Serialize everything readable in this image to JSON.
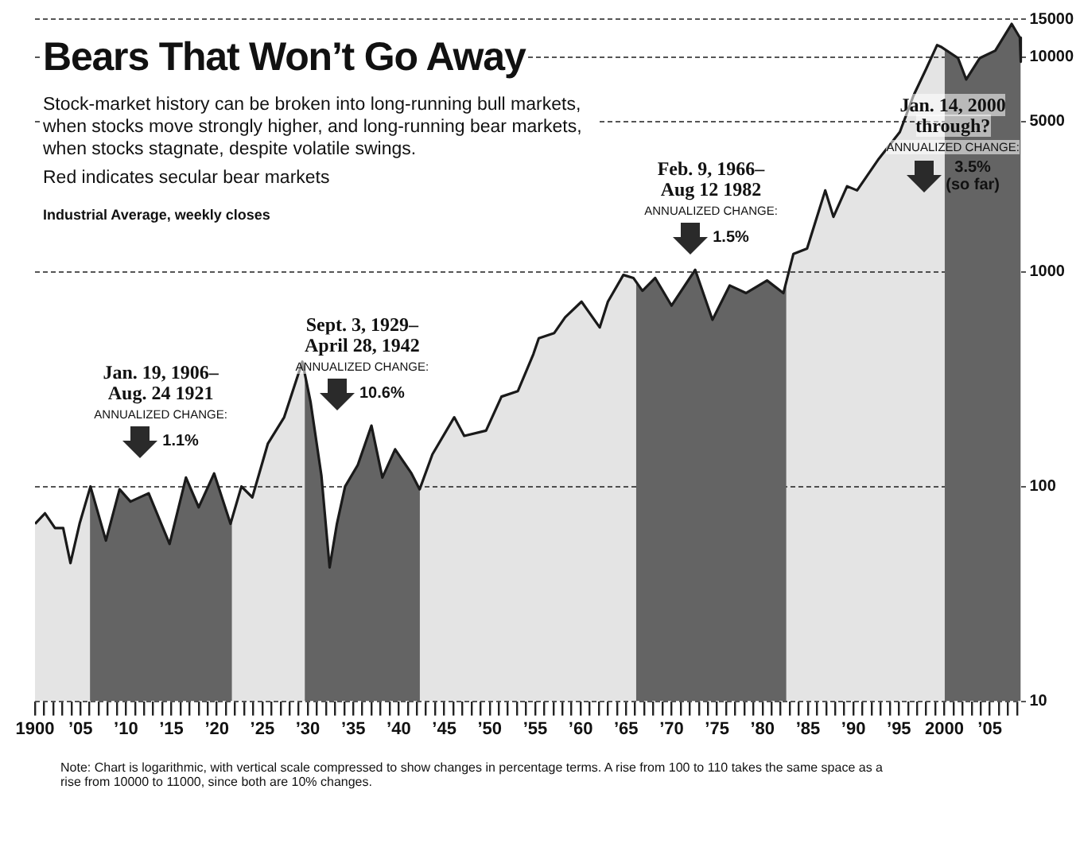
{
  "chart_data": {
    "type": "area",
    "title": "Bears That Won’t Go Away",
    "subtitle": "Stock-market history can be broken into long-running bull markets, when stocks move strongly higher, and long-running bear markets, when stocks stagnate, despite volatile swings.",
    "annotations": [
      "Red indicates secular bear markets",
      "Industrial Average, weekly closes",
      "Note: Chart is logarithmic, with vertical scale compressed to show changes in percentage terms. A rise from 100 to 110 takes the same space as a rise from 10000 to 11000, since both are 10% changes."
    ],
    "series": [
      {
        "color": "#1a1a1a",
        "x": [
          1900,
          1901.1,
          1902.2,
          1903.1,
          1903.9,
          1904.9,
          1906.1,
          1907.8,
          1909.3,
          1910.5,
          1912.5,
          1914.8,
          1916.6,
          1918.0,
          1919.7,
          1921.5,
          1922.7,
          1923.9,
          1925.6,
          1927.4,
          1929.4,
          1930.3,
          1931.5,
          1932.4,
          1933.2,
          1934.1,
          1935.5,
          1937.0,
          1938.2,
          1939.6,
          1941.4,
          1942.3,
          1943.7,
          1946.1,
          1947.2,
          1949.6,
          1951.3,
          1953.1,
          1954.8,
          1955.4,
          1957.1,
          1958.3,
          1960.1,
          1962.1,
          1963.0,
          1964.7,
          1965.8,
          1966.8,
          1968.2,
          1970.0,
          1972.6,
          1974.5,
          1976.4,
          1978.2,
          1980.5,
          1982.3,
          1983.4,
          1984.9,
          1986.9,
          1987.8,
          1989.3,
          1990.4,
          1992.8,
          1995.1,
          1996.6,
          1998.0,
          1999.2,
          1999.7,
          2001.5,
          2002.4,
          2003.9,
          2005.6,
          2007.4,
          2008.3,
          2008.4
        ],
        "values": [
          67,
          75,
          64,
          64,
          44,
          67,
          100,
          56,
          97,
          85,
          93,
          54,
          110,
          80,
          115,
          67,
          100,
          89,
          158,
          210,
          381,
          248,
          112,
          42,
          67,
          100,
          126,
          192,
          110,
          149,
          115,
          97,
          141,
          210,
          172,
          182,
          262,
          278,
          413,
          490,
          518,
          613,
          725,
          550,
          725,
          966,
          935,
          815,
          935,
          695,
          1020,
          597,
          863,
          795,
          910,
          795,
          1210,
          1282,
          2390,
          1800,
          2500,
          2390,
          3360,
          4470,
          6600,
          8800,
          11350,
          11100,
          9880,
          7850,
          9880,
          10700,
          14250,
          12300,
          9500
        ]
      }
    ],
    "bands": [
      {
        "axis": "x",
        "from": 1906.05,
        "to": 1921.65,
        "color": "#6f6f6f",
        "label": "Jan. 19, 1906–\nAug. 24 1921\nANNUALIZED CHANGE:\n1.1%"
      },
      {
        "axis": "x",
        "from": 1929.67,
        "to": 1942.32,
        "color": "#6f6f6f",
        "label": "Sept. 3, 1929–\nApril 28, 1942\nANNUALIZED CHANGE:\n10.6%"
      },
      {
        "axis": "x",
        "from": 1966.11,
        "to": 1982.61,
        "color": "#6f6f6f",
        "label": "Feb. 9, 1966–\nAug 12 1982\nANNUALIZED CHANGE:\n1.5%"
      },
      {
        "axis": "x",
        "from": 2000.04,
        "to": 2008.4,
        "color": "#6f6f6f",
        "label": "Jan. 14, 2000\nthrough?\nANNUALIZED CHANGE:\n3.5%\n(so far)"
      }
    ],
    "log": "y",
    "grid": "y",
    "marker": "none",
    "xlim": [
      1900,
      2009
    ],
    "ylim": [
      10,
      15000
    ],
    "yticks": [
      10,
      100,
      1000,
      5000,
      10000,
      15000
    ],
    "xticks": [
      {
        "value": 1900,
        "label": "1900"
      },
      {
        "value": 1901,
        "label": null
      },
      {
        "value": 1902,
        "label": null
      },
      {
        "value": 1903,
        "label": null
      },
      {
        "value": 1904,
        "label": null
      },
      {
        "value": 1905,
        "label": "’05"
      },
      {
        "value": 1906,
        "label": null
      },
      {
        "value": 1907,
        "label": null
      },
      {
        "value": 1908,
        "label": null
      },
      {
        "value": 1909,
        "label": null
      },
      {
        "value": 1910,
        "label": "’10"
      },
      {
        "value": 1911,
        "label": null
      },
      {
        "value": 1912,
        "label": null
      },
      {
        "value": 1913,
        "label": null
      },
      {
        "value": 1914,
        "label": null
      },
      {
        "value": 1915,
        "label": "’15"
      },
      {
        "value": 1916,
        "label": null
      },
      {
        "value": 1917,
        "label": null
      },
      {
        "value": 1918,
        "label": null
      },
      {
        "value": 1919,
        "label": null
      },
      {
        "value": 1920,
        "label": "’20"
      },
      {
        "value": 1921,
        "label": null
      },
      {
        "value": 1922,
        "label": null
      },
      {
        "value": 1923,
        "label": null
      },
      {
        "value": 1924,
        "label": null
      },
      {
        "value": 1925,
        "label": "’25"
      },
      {
        "value": 1926,
        "label": null
      },
      {
        "value": 1927,
        "label": null
      },
      {
        "value": 1928,
        "label": null
      },
      {
        "value": 1929,
        "label": null
      },
      {
        "value": 1930,
        "label": "’30"
      },
      {
        "value": 1931,
        "label": null
      },
      {
        "value": 1932,
        "label": null
      },
      {
        "value": 1933,
        "label": null
      },
      {
        "value": 1934,
        "label": null
      },
      {
        "value": 1935,
        "label": "’35"
      },
      {
        "value": 1936,
        "label": null
      },
      {
        "value": 1937,
        "label": null
      },
      {
        "value": 1938,
        "label": null
      },
      {
        "value": 1939,
        "label": null
      },
      {
        "value": 1940,
        "label": "’40"
      },
      {
        "value": 1941,
        "label": null
      },
      {
        "value": 1942,
        "label": null
      },
      {
        "value": 1943,
        "label": null
      },
      {
        "value": 1944,
        "label": null
      },
      {
        "value": 1945,
        "label": "’45"
      },
      {
        "value": 1946,
        "label": null
      },
      {
        "value": 1947,
        "label": null
      },
      {
        "value": 1948,
        "label": null
      },
      {
        "value": 1949,
        "label": null
      },
      {
        "value": 1950,
        "label": "’50"
      },
      {
        "value": 1951,
        "label": null
      },
      {
        "value": 1952,
        "label": null
      },
      {
        "value": 1953,
        "label": null
      },
      {
        "value": 1954,
        "label": null
      },
      {
        "value": 1955,
        "label": "’55"
      },
      {
        "value": 1956,
        "label": null
      },
      {
        "value": 1957,
        "label": null
      },
      {
        "value": 1958,
        "label": null
      },
      {
        "value": 1959,
        "label": null
      },
      {
        "value": 1960,
        "label": "’60"
      },
      {
        "value": 1961,
        "label": null
      },
      {
        "value": 1962,
        "label": null
      },
      {
        "value": 1963,
        "label": null
      },
      {
        "value": 1964,
        "label": null
      },
      {
        "value": 1965,
        "label": "’65"
      },
      {
        "value": 1966,
        "label": null
      },
      {
        "value": 1967,
        "label": null
      },
      {
        "value": 1968,
        "label": null
      },
      {
        "value": 1969,
        "label": null
      },
      {
        "value": 1970,
        "label": "’70"
      },
      {
        "value": 1971,
        "label": null
      },
      {
        "value": 1972,
        "label": null
      },
      {
        "value": 1973,
        "label": null
      },
      {
        "value": 1974,
        "label": null
      },
      {
        "value": 1975,
        "label": "’75"
      },
      {
        "value": 1976,
        "label": null
      },
      {
        "value": 1977,
        "label": null
      },
      {
        "value": 1978,
        "label": null
      },
      {
        "value": 1979,
        "label": null
      },
      {
        "value": 1980,
        "label": "’80"
      },
      {
        "value": 1981,
        "label": null
      },
      {
        "value": 1982,
        "label": null
      },
      {
        "value": 1983,
        "label": null
      },
      {
        "value": 1984,
        "label": null
      },
      {
        "value": 1985,
        "label": "’85"
      },
      {
        "value": 1986,
        "label": null
      },
      {
        "value": 1987,
        "label": null
      },
      {
        "value": 1988,
        "label": null
      },
      {
        "value": 1989,
        "label": null
      },
      {
        "value": 1990,
        "label": "’90"
      },
      {
        "value": 1991,
        "label": null
      },
      {
        "value": 1992,
        "label": null
      },
      {
        "value": 1993,
        "label": null
      },
      {
        "value": 1994,
        "label": null
      },
      {
        "value": 1995,
        "label": "’95"
      },
      {
        "value": 1996,
        "label": null
      },
      {
        "value": 1997,
        "label": null
      },
      {
        "value": 1998,
        "label": null
      },
      {
        "value": 1999,
        "label": null
      },
      {
        "value": 2000,
        "label": "2000"
      },
      {
        "value": 2001,
        "label": null
      },
      {
        "value": 2002,
        "label": null
      },
      {
        "value": 2003,
        "label": null
      },
      {
        "value": 2004,
        "label": null
      },
      {
        "value": 2005,
        "label": "’05"
      },
      {
        "value": 2006,
        "label": null
      },
      {
        "value": 2007,
        "label": null
      },
      {
        "value": 2008,
        "label": null
      }
    ]
  }
}
